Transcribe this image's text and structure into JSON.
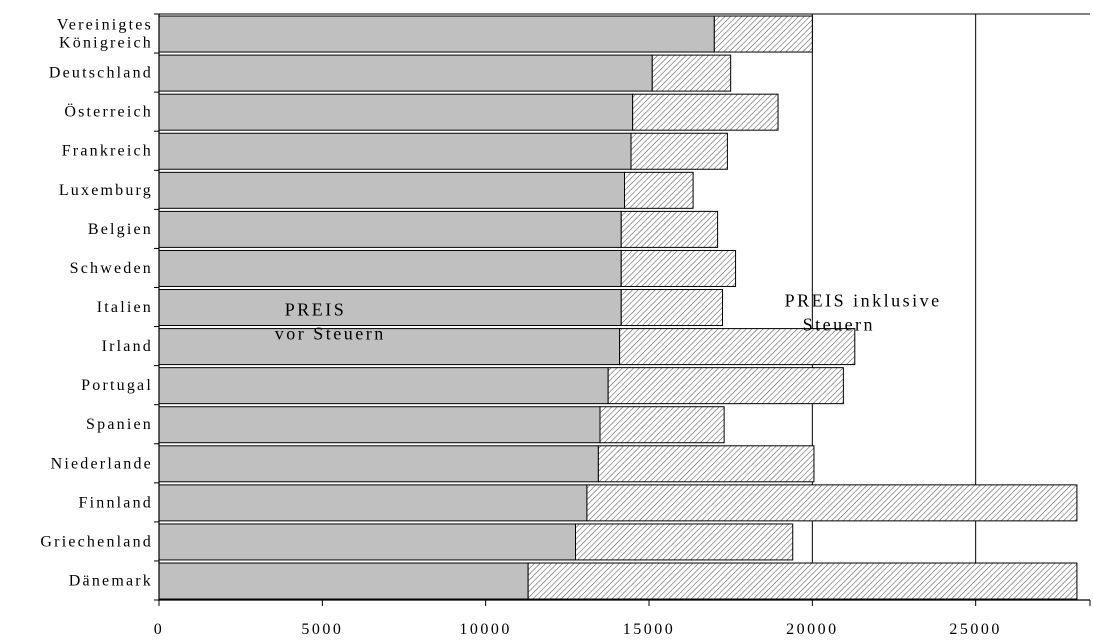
{
  "chart_data": {
    "type": "bar",
    "orientation": "horizontal",
    "stacked": true,
    "categories": [
      "Vereinigtes Königreich",
      "Deutschland",
      "Österreich",
      "Frankreich",
      "Luxemburg",
      "Belgien",
      "Schweden",
      "Italien",
      "Irland",
      "Portugal",
      "Spanien",
      "Niederlande",
      "Finnland",
      "Griechenland",
      "Dänemark"
    ],
    "category_label_lines": [
      [
        "Vereinigtes",
        "Königreich"
      ],
      [
        "Deutschland"
      ],
      [
        "Österreich"
      ],
      [
        "Frankreich"
      ],
      [
        "Luxemburg"
      ],
      [
        "Belgien"
      ],
      [
        "Schweden"
      ],
      [
        "Italien"
      ],
      [
        "Irland"
      ],
      [
        "Portugal"
      ],
      [
        "Spanien"
      ],
      [
        "Niederlande"
      ],
      [
        "Finnland"
      ],
      [
        "Griechenland"
      ],
      [
        "Dänemark"
      ]
    ],
    "series": [
      {
        "values": [
          17000,
          15100,
          14500,
          14450,
          14250,
          14150,
          14150,
          14150,
          14100,
          13750,
          13500,
          13450,
          13100,
          12750,
          11300
        ]
      },
      {
        "values": [
          3000,
          2400,
          4450,
          2950,
          2100,
          2950,
          3500,
          3100,
          7200,
          7200,
          3800,
          6600,
          15000,
          6650,
          16800
        ]
      }
    ],
    "annotations": [
      {
        "lines": [
          "PREIS",
          "vor Steuern"
        ],
        "x": 3850,
        "category": "Italien"
      },
      {
        "lines": [
          "PREIS inklusive",
          "Steuern"
        ],
        "x": 19150,
        "category": "Italien"
      }
    ],
    "xlim": [
      0,
      28500
    ],
    "xticks": [
      0,
      5000,
      10000,
      15000,
      20000,
      25000
    ],
    "gridlines_x": [
      20000,
      25000
    ],
    "colors": {
      "base": "#c0c0c0",
      "tax_hatch": "#000000",
      "outline": "#000000"
    }
  }
}
